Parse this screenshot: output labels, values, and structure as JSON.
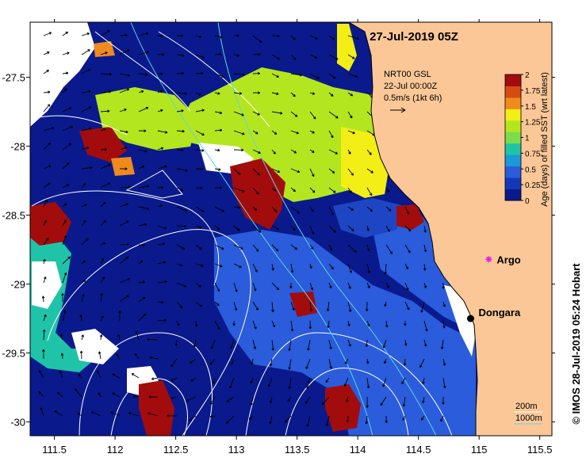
{
  "map": {
    "title": "27-Jul-2019 05Z",
    "lon_range": [
      111.3,
      115.6
    ],
    "lat_range": [
      -30.1,
      -27.1
    ],
    "lon_ticks": [
      "111.5",
      "112",
      "112.5",
      "113",
      "113.5",
      "114",
      "114.5",
      "115",
      "115.5"
    ],
    "lat_ticks": [
      "-27.5",
      "-28",
      "-28.5",
      "-29",
      "-29.5",
      "-30"
    ],
    "colors": {
      "land": "#fbc797",
      "age_0": "#0a1a8c",
      "age_0_25": "#2a5cdc",
      "age_0_75": "#1fc3a8",
      "age_1": "#b3e61e",
      "age_1_25": "#f2ee16",
      "age_1_5": "#ee8a1e",
      "age_2": "#a30c0c",
      "missing": "#ffffff",
      "contour": "#ffffff",
      "isobath_1000m": "#5fd3e0"
    }
  },
  "current_note": {
    "product": "NRT00 GSL",
    "time": "22-Jul 00:00Z",
    "arrow_scale": "0.5m/s (1kt 6h)"
  },
  "colorbar": {
    "label": "Age (days) of filled SST (wrt latest)",
    "ticks": [
      "0",
      "0.25",
      "0.5",
      "0.75",
      "1",
      "1.25",
      "1.5",
      "1.75",
      "2"
    ],
    "range": [
      0,
      2
    ],
    "colors": [
      "#0a1a8c",
      "#1238b8",
      "#2a5cdc",
      "#1a98d8",
      "#1fc3a8",
      "#7ddc4a",
      "#b3e61e",
      "#f2ee16",
      "#ee8a1e",
      "#d84a10",
      "#a30c0c"
    ]
  },
  "places": [
    {
      "name": "Argo",
      "lon": 115.08,
      "lat": -28.82,
      "marker": "star",
      "color": "#e020e0"
    },
    {
      "name": "Dongara",
      "lon": 114.93,
      "lat": -29.25,
      "marker": "dot",
      "color": "#000000"
    }
  ],
  "legend": {
    "isobath_200": "200m",
    "isobath_1000": "1000m"
  },
  "credit": "© IMOS 28-Jul-2019 05:24 Hobart"
}
